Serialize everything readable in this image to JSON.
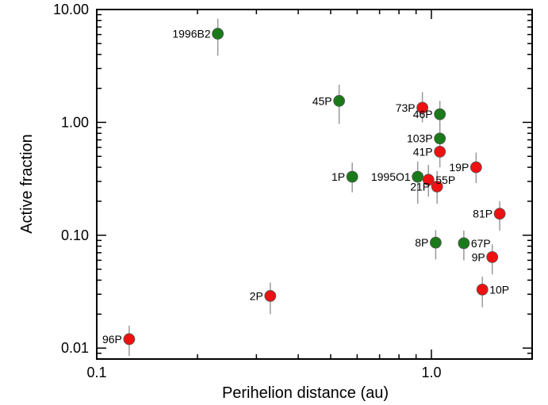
{
  "chart_data": {
    "type": "scatter",
    "title": "",
    "xlabel": "Perihelion distance (au)",
    "ylabel": "Active fraction",
    "x_scale": "log",
    "y_scale": "log",
    "xlim": [
      0.1,
      2.0
    ],
    "ylim": [
      0.008,
      10.0
    ],
    "x_major_ticks": [
      0.1,
      1.0
    ],
    "x_tick_labels": [
      "0.1",
      "1.0"
    ],
    "y_major_ticks": [
      0.01,
      0.1,
      1.0,
      10.0
    ],
    "y_tick_labels": [
      "0.01",
      "0.10",
      "1.00",
      "10.00"
    ],
    "grid": false,
    "colors": {
      "red": "#ee1111",
      "green": "#1a7a1a",
      "errorbar": "#999999"
    },
    "points": [
      {
        "label": "1996B2",
        "x": 0.23,
        "y": 6.1,
        "ylo": 3.9,
        "yhi": 8.3,
        "color": "green",
        "label_side": "left"
      },
      {
        "label": "45P",
        "x": 0.53,
        "y": 1.55,
        "ylo": 0.97,
        "yhi": 2.15,
        "color": "green",
        "label_side": "left"
      },
      {
        "label": "73P",
        "x": 0.94,
        "y": 1.35,
        "ylo": 1.0,
        "yhi": 1.85,
        "color": "red",
        "label_side": "left"
      },
      {
        "label": "46P",
        "x": 1.06,
        "y": 1.18,
        "ylo": 0.85,
        "yhi": 1.55,
        "color": "green",
        "label_side": "left"
      },
      {
        "label": "103P",
        "x": 1.06,
        "y": 0.72,
        "ylo": 0.52,
        "yhi": 0.98,
        "color": "green",
        "label_side": "left"
      },
      {
        "label": "41P",
        "x": 1.06,
        "y": 0.55,
        "ylo": 0.4,
        "yhi": 0.75,
        "color": "red",
        "label_side": "left"
      },
      {
        "label": "19P",
        "x": 1.36,
        "y": 0.4,
        "ylo": 0.29,
        "yhi": 0.54,
        "color": "red",
        "label_side": "left"
      },
      {
        "label": "1P",
        "x": 0.58,
        "y": 0.33,
        "ylo": 0.24,
        "yhi": 0.44,
        "color": "green",
        "label_side": "left"
      },
      {
        "label": "1995O1",
        "x": 0.91,
        "y": 0.33,
        "ylo": 0.19,
        "yhi": 0.45,
        "color": "green",
        "label_side": "left"
      },
      {
        "label": "55P",
        "x": 0.98,
        "y": 0.31,
        "ylo": 0.22,
        "yhi": 0.42,
        "color": "red",
        "label_side": "right"
      },
      {
        "label": "21P",
        "x": 1.04,
        "y": 0.27,
        "ylo": 0.19,
        "yhi": 0.37,
        "color": "red",
        "label_side": "left"
      },
      {
        "label": "81P",
        "x": 1.6,
        "y": 0.155,
        "ylo": 0.11,
        "yhi": 0.2,
        "color": "red",
        "label_side": "left"
      },
      {
        "label": "8P",
        "x": 1.03,
        "y": 0.086,
        "ylo": 0.061,
        "yhi": 0.111,
        "color": "green",
        "label_side": "left"
      },
      {
        "label": "67P",
        "x": 1.25,
        "y": 0.085,
        "ylo": 0.06,
        "yhi": 0.11,
        "color": "green",
        "label_side": "right"
      },
      {
        "label": "9P",
        "x": 1.52,
        "y": 0.064,
        "ylo": 0.045,
        "yhi": 0.083,
        "color": "red",
        "label_side": "left"
      },
      {
        "label": "10P",
        "x": 1.42,
        "y": 0.033,
        "ylo": 0.023,
        "yhi": 0.043,
        "color": "red",
        "label_side": "right"
      },
      {
        "label": "2P",
        "x": 0.33,
        "y": 0.029,
        "ylo": 0.02,
        "yhi": 0.038,
        "color": "red",
        "label_side": "left"
      },
      {
        "label": "96P",
        "x": 0.125,
        "y": 0.012,
        "ylo": 0.0085,
        "yhi": 0.0158,
        "color": "red",
        "label_side": "left"
      }
    ]
  }
}
